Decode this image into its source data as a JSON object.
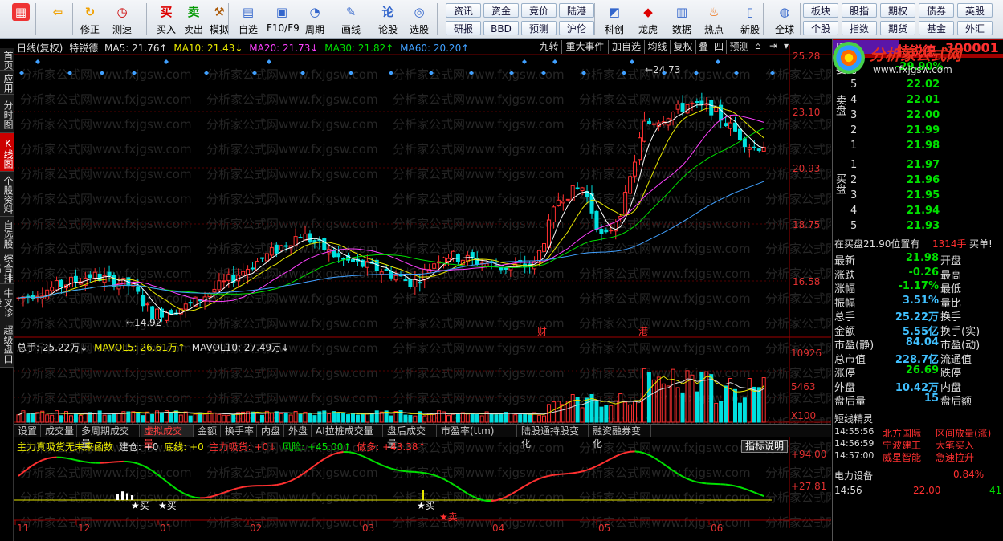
{
  "toolbar": {
    "buttons": [
      {
        "label": "",
        "icon": "grid"
      },
      {
        "label": "",
        "icon": "back-arrow"
      },
      {
        "label": "修正",
        "icon": "correct"
      },
      {
        "label": "测速",
        "icon": "clock"
      },
      {
        "label": "买入",
        "icon": "buy"
      },
      {
        "label": "卖出",
        "icon": "sell"
      },
      {
        "label": "模拟",
        "icon": "hammer"
      },
      {
        "label": "自选",
        "icon": "watchlist"
      },
      {
        "label": "F10/F9",
        "icon": "f10"
      },
      {
        "label": "周期",
        "icon": "period"
      },
      {
        "label": "画线",
        "icon": "pen"
      },
      {
        "label": "论股",
        "icon": "forum"
      },
      {
        "label": "选股",
        "icon": "screener"
      },
      {
        "label": "科创",
        "icon": "star-market"
      },
      {
        "label": "龙虎",
        "icon": "dragon-tiger"
      },
      {
        "label": "数据",
        "icon": "data"
      },
      {
        "label": "热点",
        "icon": "hot"
      },
      {
        "label": "新股",
        "icon": "new-stock"
      },
      {
        "label": "全球",
        "icon": "globe"
      }
    ],
    "groups_row1": [
      "资讯",
      "资金",
      "竞价",
      "陆港"
    ],
    "groups_row2": [
      "研报",
      "BBD",
      "预测",
      "沪伦"
    ],
    "groups_right_row1": [
      "板块",
      "股指",
      "期权",
      "债券",
      "英股"
    ],
    "groups_right_row2": [
      "个股",
      "指数",
      "期货",
      "基金",
      "外汇"
    ]
  },
  "left_nav": [
    "首页",
    "应用",
    "分时图",
    "K线图",
    "个股资料",
    "自选股",
    "综合排名",
    "牛叉诊股",
    "超级盘口"
  ],
  "chart": {
    "header": {
      "period": "日线(复权)",
      "name": "特锐德",
      "ma5": "MA5: 21.76↑",
      "ma10": "MA10: 21.43↓",
      "ma20": "MA20: 21.73↓",
      "ma30": "MA30: 21.82↑",
      "ma60": "MA60: 20.20↑"
    },
    "top_buttons": [
      "九转",
      "重大事件",
      "加自选",
      "均线",
      "复权",
      "叠",
      "四",
      "预测"
    ],
    "y_labels": [
      "25.28",
      "23.10",
      "20.93",
      "18.75",
      "16.58"
    ],
    "annotations": {
      "high": "24.73",
      "low": "14.92",
      "cai": "财",
      "gang": "港"
    },
    "volume": {
      "header": "总手: 25.22万↓",
      "mavol5": "MAVOL5: 26.61万↑",
      "mavol10": "MAVOL10: 27.49万↓",
      "y_labels": [
        "10926",
        "5463",
        "X100"
      ]
    },
    "tabs": [
      "设置",
      "成交量",
      "多周期成交量",
      "虚拟成交量",
      "金额",
      "换手率",
      "内盘",
      "外盘",
      "AI拉桩成交量",
      "盘后成交量",
      "市盈率(ttm)",
      "陆股通持股变化",
      "融资融券变化"
    ],
    "indicator": {
      "name": "主力真吸货无未来函数",
      "jiancang": "建仓: +0",
      "dixian": "底线: +0",
      "zhuli": "主力吸货: +0↓",
      "fengxian": "风险: +45.00↑",
      "zuoduo": "做多: +43.38↑",
      "help": "指标说明",
      "y_labels": [
        "+94.00",
        "+27.81"
      ],
      "buy": "买",
      "sell": "卖"
    },
    "months": [
      "11",
      "12",
      "01",
      "02",
      "03",
      "04",
      "05",
      "06"
    ],
    "watermark": "分析家公式网www.fxjgsw.com"
  },
  "side": {
    "r": "R",
    "name": "特锐德",
    "code": "300001",
    "weibi_label": "委比",
    "weibi": "-29.90%",
    "sell_label": "卖盘",
    "buy_label": "买盘",
    "asks": [
      {
        "n": "5",
        "p": "22.02"
      },
      {
        "n": "4",
        "p": "22.01"
      },
      {
        "n": "3",
        "p": "22.00"
      },
      {
        "n": "2",
        "p": "21.99"
      },
      {
        "n": "1",
        "p": "21.98"
      }
    ],
    "bids": [
      {
        "n": "1",
        "p": "21.97"
      },
      {
        "n": "2",
        "p": "21.96"
      },
      {
        "n": "3",
        "p": "21.95"
      },
      {
        "n": "4",
        "p": "21.94"
      },
      {
        "n": "5",
        "p": "21.93"
      }
    ],
    "notice_a": "在买盘21.90位置有",
    "notice_b": "1314手",
    "notice_c": "买单!",
    "stats": [
      {
        "l": "最新",
        "v": "21.98",
        "r": "开盘"
      },
      {
        "l": "涨跌",
        "v": "-0.26",
        "r": "最高"
      },
      {
        "l": "涨幅",
        "v": "-1.17%",
        "r": "最低"
      },
      {
        "l": "振幅",
        "v": "3.51%",
        "r": "量比"
      },
      {
        "l": "总手",
        "v": "25.22万",
        "r": "换手"
      },
      {
        "l": "金额",
        "v": "5.55亿",
        "r": "换手(实)"
      },
      {
        "l": "市盈(静)",
        "v": "84.04",
        "r": "市盈(动)"
      },
      {
        "l": "总市值",
        "v": "228.7亿",
        "r": "流通值"
      },
      {
        "l": "涨停",
        "v": "26.69",
        "r": "跌停"
      },
      {
        "l": "外盘",
        "v": "10.42万",
        "r": "内盘"
      },
      {
        "l": "盘后量",
        "v": "15",
        "r": "盘后额"
      }
    ],
    "jingling_title": "短线精灵",
    "jingling": [
      {
        "t": "14:55:56",
        "s": "北方国际",
        "e": "区间放量(涨)"
      },
      {
        "t": "14:56:59",
        "s": "宁波建工",
        "e": "大笔买入"
      },
      {
        "t": "14:57:00",
        "s": "威星智能",
        "e": "急速拉升"
      }
    ],
    "sector": "电力设备",
    "sector_pct": "0.84%",
    "tick_time": "14:56",
    "tick_price": "22.00",
    "tick_vol": "41",
    "logo_text": "分析家公式网",
    "logo_url": "www.fxjgsw.com"
  },
  "colors": {
    "up": "#ff3030",
    "down": "#00e0e0",
    "ma5": "#ffffff",
    "ma10": "#e8e800",
    "ma20": "#ff40ff",
    "ma30": "#00e000",
    "ma60": "#40a0ff"
  }
}
